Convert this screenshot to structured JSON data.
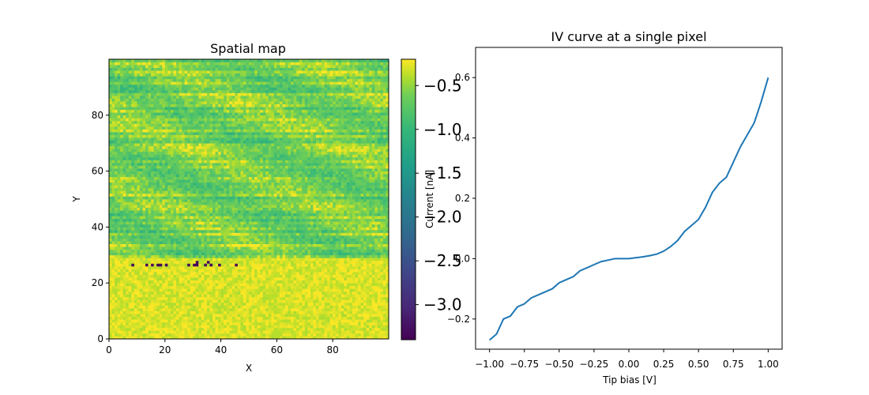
{
  "chart_data": [
    {
      "type": "heatmap",
      "title": "Spatial map",
      "xlabel": "X",
      "ylabel": "Y",
      "xlim": [
        0,
        100
      ],
      "ylim": [
        0,
        100
      ],
      "xticks": [
        0,
        20,
        40,
        60,
        80
      ],
      "yticks": [
        0,
        20,
        40,
        60,
        80
      ],
      "grid": false,
      "colormap": "viridis",
      "colorbar": {
        "label": "Current [nA]",
        "range": [
          -3.4,
          -0.2
        ],
        "ticks": [
          -3.0,
          -2.5,
          -2.0,
          -1.5,
          -1.0,
          -0.5
        ],
        "tick_labels": [
          "−3.0",
          "−2.5",
          "−2.0",
          "−1.5",
          "−1.0",
          "−0.5"
        ]
      },
      "regions": [
        {
          "y_range": [
            0,
            28
          ],
          "typical_value": -0.3,
          "note_value": "uniform bright band"
        },
        {
          "y_range": [
            29,
            100
          ],
          "typical_value": -0.6
        }
      ],
      "outlier_row": {
        "y": 26,
        "x_range": [
          3,
          45
        ],
        "low_value": -3.3
      }
    },
    {
      "type": "line",
      "title": "IV curve at a single pixel",
      "xlabel": "Tip bias [V]",
      "ylabel": "",
      "xlim": [
        -1.1,
        1.1
      ],
      "ylim": [
        -0.3,
        0.7
      ],
      "xticks": [
        -1.0,
        -0.75,
        -0.5,
        -0.25,
        0.0,
        0.25,
        0.5,
        0.75,
        1.0
      ],
      "xtick_labels": [
        "−1.00",
        "−0.75",
        "−0.50",
        "−0.25",
        "0.00",
        "0.25",
        "0.50",
        "0.75",
        "1.00"
      ],
      "yticks": [
        -0.2,
        0.0,
        0.2,
        0.4,
        0.6
      ],
      "ytick_labels": [
        "−0.2",
        "0.0",
        "0.2",
        "0.4",
        "0.6"
      ],
      "grid": false,
      "color": "#1f77b4",
      "series": [
        {
          "x": [
            -1.0,
            -0.95,
            -0.9,
            -0.85,
            -0.8,
            -0.75,
            -0.7,
            -0.65,
            -0.6,
            -0.55,
            -0.5,
            -0.45,
            -0.4,
            -0.35,
            -0.3,
            -0.25,
            -0.2,
            -0.15,
            -0.1,
            -0.05,
            0.0,
            0.05,
            0.1,
            0.15,
            0.2,
            0.25,
            0.3,
            0.35,
            0.4,
            0.45,
            0.5,
            0.55,
            0.6,
            0.65,
            0.7,
            0.75,
            0.8,
            0.85,
            0.9,
            0.95,
            1.0
          ],
          "y": [
            -0.27,
            -0.25,
            -0.2,
            -0.19,
            -0.16,
            -0.15,
            -0.13,
            -0.12,
            -0.11,
            -0.1,
            -0.08,
            -0.07,
            -0.06,
            -0.04,
            -0.03,
            -0.02,
            -0.01,
            -0.005,
            0.0,
            0.0,
            0.0,
            0.003,
            0.006,
            0.01,
            0.015,
            0.025,
            0.04,
            0.06,
            0.09,
            0.11,
            0.13,
            0.17,
            0.22,
            0.25,
            0.27,
            0.32,
            0.37,
            0.41,
            0.45,
            0.52,
            0.6
          ]
        }
      ]
    }
  ]
}
